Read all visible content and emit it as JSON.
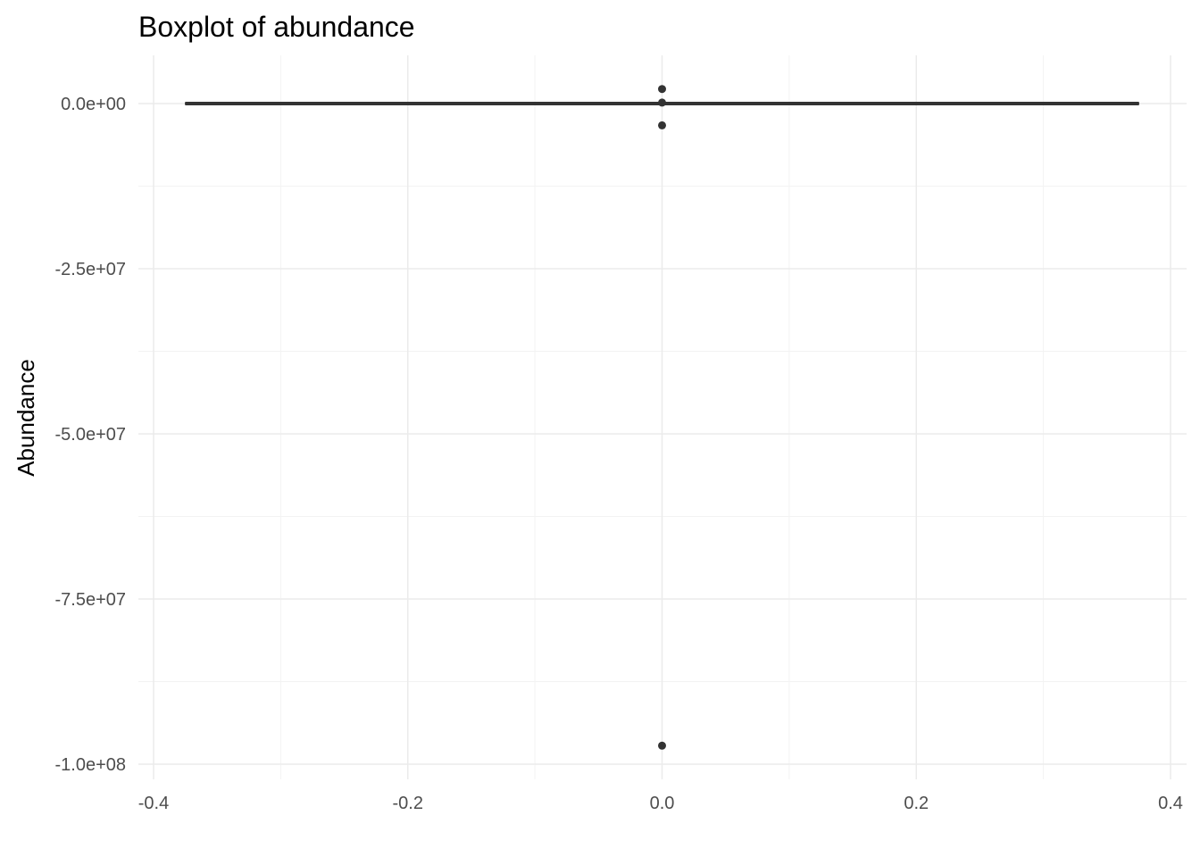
{
  "chart_data": {
    "type": "boxplot",
    "title": "Boxplot of abundance",
    "xlabel": "",
    "ylabel": "Abundance",
    "xlim": [
      -0.4,
      0.4
    ],
    "ylim": [
      -100000000,
      0
    ],
    "x_ticks": [
      {
        "value": -0.4,
        "label": "-0.4"
      },
      {
        "value": -0.2,
        "label": "-0.2"
      },
      {
        "value": 0.0,
        "label": "0.0"
      },
      {
        "value": 0.2,
        "label": "0.2"
      },
      {
        "value": 0.4,
        "label": "0.4"
      }
    ],
    "y_ticks": [
      {
        "value": 0,
        "label": "0.0e+00"
      },
      {
        "value": -25000000,
        "label": "-2.5e+07"
      },
      {
        "value": -50000000,
        "label": "-5.0e+07"
      },
      {
        "value": -75000000,
        "label": "-7.5e+07"
      },
      {
        "value": -100000000,
        "label": "-1.0e+08"
      }
    ],
    "box": {
      "x": 0,
      "x_from": -0.375,
      "x_to": 0.375,
      "q1": 0,
      "median": 0,
      "q3": 0,
      "whisker_low": 0,
      "whisker_high": 0
    },
    "outliers": [
      {
        "x": 0,
        "y": 2200000
      },
      {
        "x": 0,
        "y": 150000
      },
      {
        "x": 0,
        "y": -3300000
      },
      {
        "x": 0,
        "y": -97200000
      }
    ],
    "grid": true,
    "colors": {
      "box": "#333333",
      "points": "#333333",
      "grid_major": "#ebebeb",
      "grid_minor": "#f3f3f3",
      "tick_text": "#4d4d4d"
    }
  }
}
